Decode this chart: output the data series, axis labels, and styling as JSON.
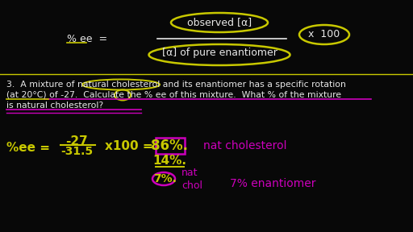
{
  "bg_color": "#080808",
  "white_color": "#e8e8e8",
  "yellow_color": "#c8c800",
  "magenta_color": "#cc00bb",
  "formula_num": "observed [α]",
  "formula_den": "[α] of pure enantiomer",
  "pct_ee_label": "% ee  =",
  "times_100": "x  100",
  "q_line1": "3.  A mixture of natural cholesterol and its enantiomer has a specific rotation",
  "q_line2": "(at 20°C) of -27.  Calculate the % ee of this mixture.  What % of the mixture",
  "q_line3": "is natural cholesterol?",
  "frac_num": "-27",
  "frac_den": "-31.5",
  "result_86": "86%.",
  "result_nat": "nat cholesterol",
  "result_14": "14%.",
  "result_7a": "7%.",
  "result_nat_chol": "nat\nchol",
  "result_7b": "7% enantiomer"
}
